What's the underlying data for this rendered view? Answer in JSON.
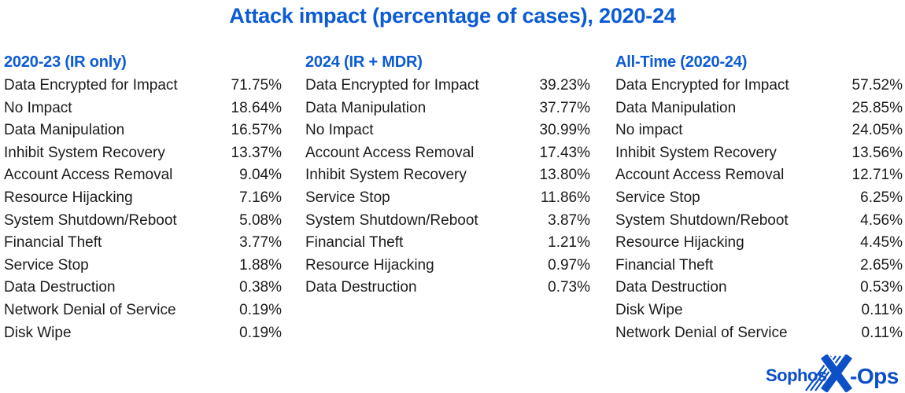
{
  "title": "Attack impact (percentage of cases), 2020-24",
  "colors": {
    "accent": "#0b5bd4",
    "body_text": "#1b1b1d",
    "logo_blue": "#0c4fc6",
    "background": "#ffffff"
  },
  "logo": {
    "sophos": "Sophos",
    "ops": "-Ops",
    "x_glyph": "x-ops-stripe-x"
  },
  "chart_data": [
    {
      "type": "table",
      "title": "2020-23 (IR only)",
      "unit": "%",
      "categories": [
        "Data Encrypted for Impact",
        "No Impact",
        "Data Manipulation",
        "Inhibit System Recovery",
        "Account Access Removal",
        "Resource Hijacking",
        "System Shutdown/Reboot",
        "Financial Theft",
        "Service Stop",
        "Data Destruction",
        "Network Denial of Service",
        "Disk Wipe"
      ],
      "values": [
        71.75,
        18.64,
        16.57,
        13.37,
        9.04,
        7.16,
        5.08,
        3.77,
        1.88,
        0.38,
        0.19,
        0.19
      ]
    },
    {
      "type": "table",
      "title": "2024 (IR + MDR)",
      "unit": "%",
      "categories": [
        "Data Encrypted for Impact",
        "Data Manipulation",
        "No Impact",
        "Account Access Removal",
        "Inhibit System Recovery",
        "Service Stop",
        "System Shutdown/Reboot",
        "Financial Theft",
        "Resource Hijacking",
        "Data Destruction"
      ],
      "values": [
        39.23,
        37.77,
        30.99,
        17.43,
        13.8,
        11.86,
        3.87,
        1.21,
        0.97,
        0.73
      ]
    },
    {
      "type": "table",
      "title": "All-Time (2020-24)",
      "unit": "%",
      "categories": [
        "Data Encrypted for Impact",
        "Data Manipulation",
        "No impact",
        "Inhibit System Recovery",
        "Account Access Removal",
        "Service Stop",
        "System Shutdown/Reboot",
        "Resource Hijacking",
        "Financial Theft",
        "Data Destruction",
        "Disk Wipe",
        "Network Denial of Service"
      ],
      "values": [
        57.52,
        25.85,
        24.05,
        13.56,
        12.71,
        6.25,
        4.56,
        4.45,
        2.65,
        0.53,
        0.11,
        0.11
      ]
    }
  ]
}
